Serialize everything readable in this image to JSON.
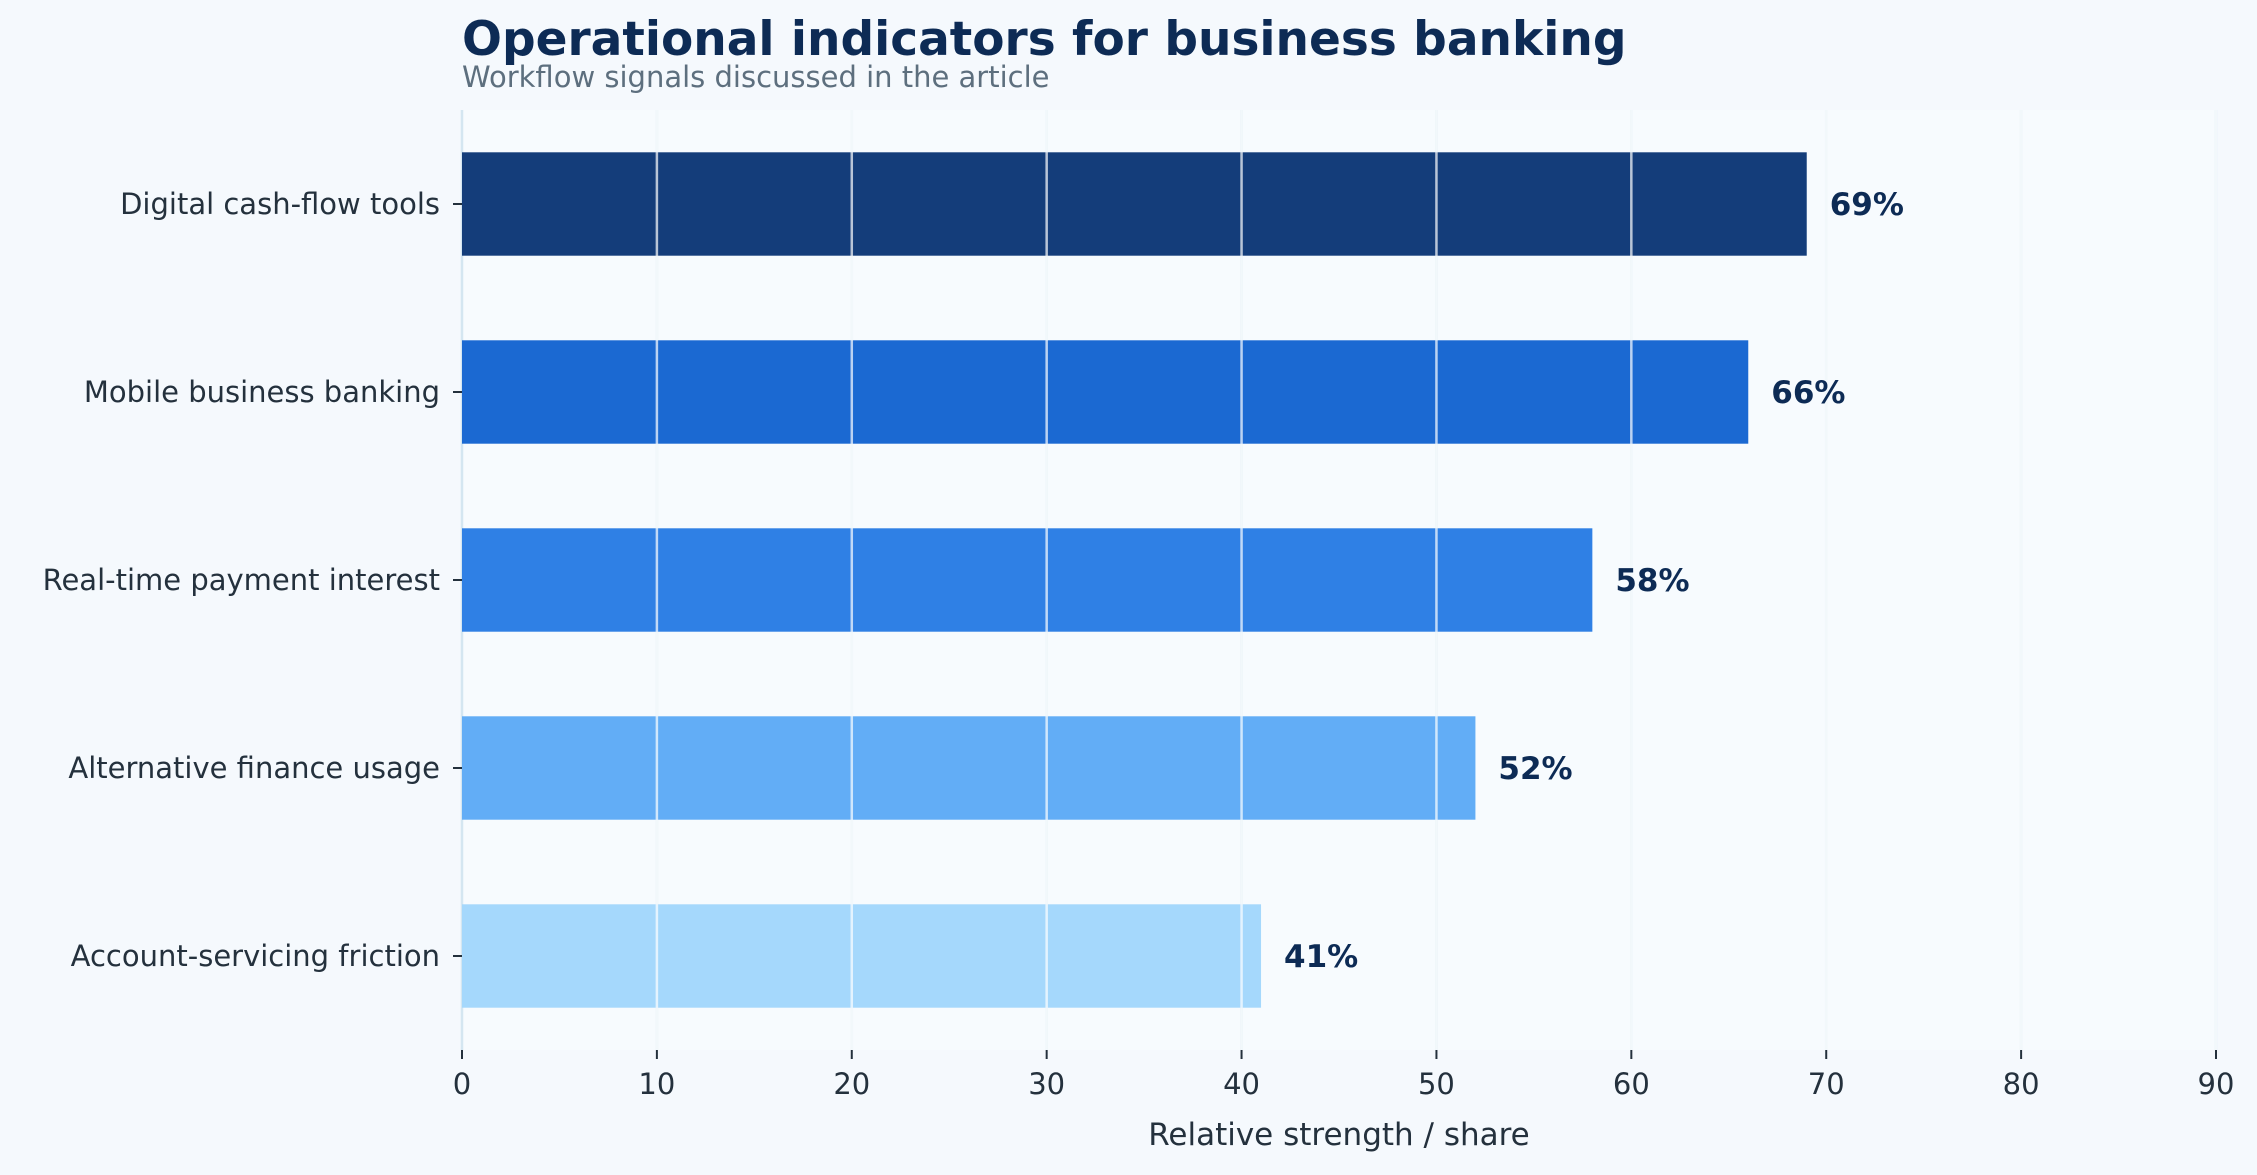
{
  "chart_data": {
    "type": "bar",
    "orientation": "horizontal",
    "title": "Operational indicators for business banking",
    "subtitle": "Workflow signals discussed in the article",
    "xlabel": "Relative strength / share",
    "ylabel": "",
    "xlim": [
      0,
      90
    ],
    "xticks": [
      0,
      10,
      20,
      30,
      40,
      50,
      60,
      70,
      80,
      90
    ],
    "grid": "vertical",
    "legend": "none",
    "categories": [
      "Digital cash-flow tools",
      "Mobile business banking",
      "Real-time payment interest",
      "Alternative finance usage",
      "Account-servicing friction"
    ],
    "values": [
      69,
      66,
      58,
      52,
      41
    ],
    "value_labels": [
      "69%",
      "66%",
      "58%",
      "52%",
      "41%"
    ],
    "bar_colors": [
      "#143d7a",
      "#1b69d2",
      "#2f80e5",
      "#62adf6",
      "#a5d8fc"
    ],
    "colors": {
      "background": "#f5f9fd",
      "plot_background": "#f7fbfe",
      "grid": "#d4e6f1",
      "title": "#0d2b55",
      "subtitle": "#5d6f7e",
      "axis_text": "#24313d",
      "value_label": "#0d2b55"
    }
  }
}
